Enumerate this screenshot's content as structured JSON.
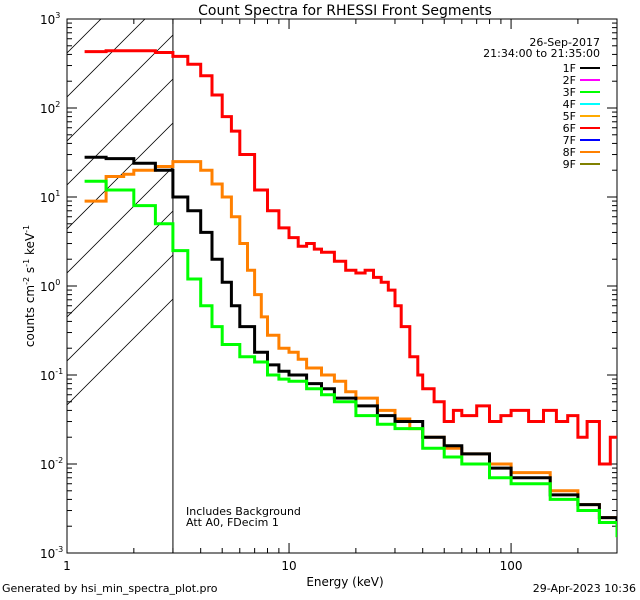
{
  "chart_data": {
    "type": "line",
    "title": "Count Spectra for RHESSI Front Segments",
    "xlabel": "Energy (keV)",
    "ylabel": "counts cm-2 s-1 keV-1",
    "ylabel_parts": {
      "base": "counts cm",
      "exp1": "-2",
      "mid": " s",
      "exp2": "-1",
      "tail": " keV",
      "exp3": "-1"
    },
    "xscale": "log",
    "yscale": "log",
    "xlim": [
      1,
      300
    ],
    "ylim": [
      0.001,
      1000
    ],
    "x_ticks": [
      {
        "value": 1,
        "label": "1"
      },
      {
        "value": 10,
        "label": "10"
      },
      {
        "value": 100,
        "label": "100"
      }
    ],
    "y_ticks": [
      {
        "value": 0.001,
        "base": "10",
        "exp": "-3"
      },
      {
        "value": 0.01,
        "base": "10",
        "exp": "-2"
      },
      {
        "value": 0.1,
        "base": "10",
        "exp": "-1"
      },
      {
        "value": 1,
        "base": "10",
        "exp": "0"
      },
      {
        "value": 10,
        "base": "10",
        "exp": "1"
      },
      {
        "value": 100,
        "base": "10",
        "exp": "2"
      },
      {
        "value": 1000,
        "base": "10",
        "exp": "3"
      }
    ],
    "date": "26-Sep-2017",
    "time_range": "21:34:00 to 21:35:00",
    "legend": [
      {
        "label": "1F",
        "color": "#000000"
      },
      {
        "label": "2F",
        "color": "#ff00ff"
      },
      {
        "label": "3F",
        "color": "#00ff00"
      },
      {
        "label": "4F",
        "color": "#00ffff"
      },
      {
        "label": "5F",
        "color": "#ffaa00"
      },
      {
        "label": "6F",
        "color": "#ff0000"
      },
      {
        "label": "7F",
        "color": "#0000ff"
      },
      {
        "label": "8F",
        "color": "#ff8000"
      },
      {
        "label": "9F",
        "color": "#808000"
      }
    ],
    "shaded_region_max_kev": 3,
    "annotation": [
      "Includes Background",
      "Att A0, FDecim 1"
    ],
    "series": [
      {
        "name": "6F",
        "color": "#ff0000",
        "points": [
          [
            1.2,
            430
          ],
          [
            1.5,
            440
          ],
          [
            2.0,
            440
          ],
          [
            2.5,
            420
          ],
          [
            3.0,
            380
          ],
          [
            3.5,
            310
          ],
          [
            4.0,
            230
          ],
          [
            4.5,
            140
          ],
          [
            5.0,
            80
          ],
          [
            5.5,
            55
          ],
          [
            6.0,
            30
          ],
          [
            7.0,
            12
          ],
          [
            8.0,
            7
          ],
          [
            9.0,
            4.5
          ],
          [
            10.0,
            3.5
          ],
          [
            11.0,
            2.8
          ],
          [
            12.0,
            3.0
          ],
          [
            13.0,
            2.6
          ],
          [
            14.0,
            2.4
          ],
          [
            16.0,
            1.9
          ],
          [
            18.0,
            1.5
          ],
          [
            20.0,
            1.4
          ],
          [
            22.0,
            1.5
          ],
          [
            24.0,
            1.25
          ],
          [
            26.0,
            1.1
          ],
          [
            28.0,
            0.9
          ],
          [
            30.0,
            0.6
          ],
          [
            32.0,
            0.35
          ],
          [
            35.0,
            0.16
          ],
          [
            38.0,
            0.1
          ],
          [
            40.0,
            0.07
          ],
          [
            45.0,
            0.05
          ],
          [
            50.0,
            0.03
          ],
          [
            55.0,
            0.04
          ],
          [
            60.0,
            0.035
          ],
          [
            70.0,
            0.045
          ],
          [
            80.0,
            0.03
          ],
          [
            90.0,
            0.035
          ],
          [
            100.0,
            0.04
          ],
          [
            120.0,
            0.03
          ],
          [
            140.0,
            0.04
          ],
          [
            160.0,
            0.03
          ],
          [
            180.0,
            0.035
          ],
          [
            200.0,
            0.02
          ],
          [
            220.0,
            0.03
          ],
          [
            250.0,
            0.01
          ],
          [
            280.0,
            0.02
          ],
          [
            300.0,
            0.02
          ]
        ]
      },
      {
        "name": "8F",
        "color": "#ff8000",
        "points": [
          [
            1.2,
            9
          ],
          [
            1.4,
            9
          ],
          [
            1.5,
            17
          ],
          [
            1.8,
            18
          ],
          [
            2.0,
            20
          ],
          [
            2.5,
            22
          ],
          [
            3.0,
            25
          ],
          [
            3.5,
            25
          ],
          [
            4.0,
            20
          ],
          [
            4.5,
            14
          ],
          [
            5.0,
            10
          ],
          [
            5.5,
            6
          ],
          [
            6.0,
            3
          ],
          [
            6.5,
            1.5
          ],
          [
            7.0,
            0.8
          ],
          [
            7.5,
            0.45
          ],
          [
            8.0,
            0.28
          ],
          [
            9.0,
            0.2
          ],
          [
            10.0,
            0.18
          ],
          [
            11.0,
            0.15
          ],
          [
            12.0,
            0.12
          ],
          [
            14.0,
            0.1
          ],
          [
            16.0,
            0.085
          ],
          [
            18.0,
            0.065
          ],
          [
            20.0,
            0.055
          ],
          [
            25.0,
            0.04
          ],
          [
            30.0,
            0.032
          ],
          [
            35.0,
            0.025
          ],
          [
            40.0,
            0.02
          ],
          [
            50.0,
            0.015
          ],
          [
            60.0,
            0.013
          ],
          [
            80.0,
            0.01
          ],
          [
            100.0,
            0.008
          ],
          [
            150.0,
            0.005
          ],
          [
            200.0,
            0.0035
          ],
          [
            250.0,
            0.0025
          ],
          [
            300.0,
            0.002
          ]
        ]
      },
      {
        "name": "1F",
        "color": "#000000",
        "points": [
          [
            1.2,
            28
          ],
          [
            1.5,
            27
          ],
          [
            2.0,
            24
          ],
          [
            2.5,
            20
          ],
          [
            3.0,
            10
          ],
          [
            3.5,
            7
          ],
          [
            4.0,
            4
          ],
          [
            4.5,
            2
          ],
          [
            5.0,
            1.1
          ],
          [
            5.5,
            0.6
          ],
          [
            6.0,
            0.35
          ],
          [
            7.0,
            0.18
          ],
          [
            8.0,
            0.13
          ],
          [
            9.0,
            0.11
          ],
          [
            10.0,
            0.1
          ],
          [
            12.0,
            0.08
          ],
          [
            14.0,
            0.07
          ],
          [
            16.0,
            0.055
          ],
          [
            20.0,
            0.045
          ],
          [
            25.0,
            0.035
          ],
          [
            30.0,
            0.03
          ],
          [
            40.0,
            0.02
          ],
          [
            50.0,
            0.016
          ],
          [
            60.0,
            0.013
          ],
          [
            80.0,
            0.009
          ],
          [
            100.0,
            0.007
          ],
          [
            150.0,
            0.0045
          ],
          [
            200.0,
            0.0035
          ],
          [
            250.0,
            0.0025
          ],
          [
            300.0,
            0.0018
          ]
        ]
      },
      {
        "name": "3F",
        "color": "#00ff00",
        "points": [
          [
            1.2,
            15
          ],
          [
            1.5,
            12
          ],
          [
            2.0,
            8
          ],
          [
            2.5,
            5
          ],
          [
            3.0,
            2.5
          ],
          [
            3.5,
            1.2
          ],
          [
            4.0,
            0.6
          ],
          [
            4.5,
            0.35
          ],
          [
            5.0,
            0.22
          ],
          [
            6.0,
            0.16
          ],
          [
            7.0,
            0.14
          ],
          [
            8.0,
            0.1
          ],
          [
            9.0,
            0.09
          ],
          [
            10.0,
            0.085
          ],
          [
            12.0,
            0.07
          ],
          [
            14.0,
            0.06
          ],
          [
            16.0,
            0.05
          ],
          [
            20.0,
            0.035
          ],
          [
            25.0,
            0.028
          ],
          [
            30.0,
            0.025
          ],
          [
            40.0,
            0.015
          ],
          [
            50.0,
            0.012
          ],
          [
            60.0,
            0.01
          ],
          [
            80.0,
            0.007
          ],
          [
            100.0,
            0.006
          ],
          [
            150.0,
            0.004
          ],
          [
            200.0,
            0.003
          ],
          [
            250.0,
            0.0022
          ],
          [
            300.0,
            0.0015
          ]
        ]
      }
    ]
  },
  "footer": {
    "left": "Generated by hsi_min_spectra_plot.pro",
    "right": "29-Apr-2023 10:36"
  }
}
